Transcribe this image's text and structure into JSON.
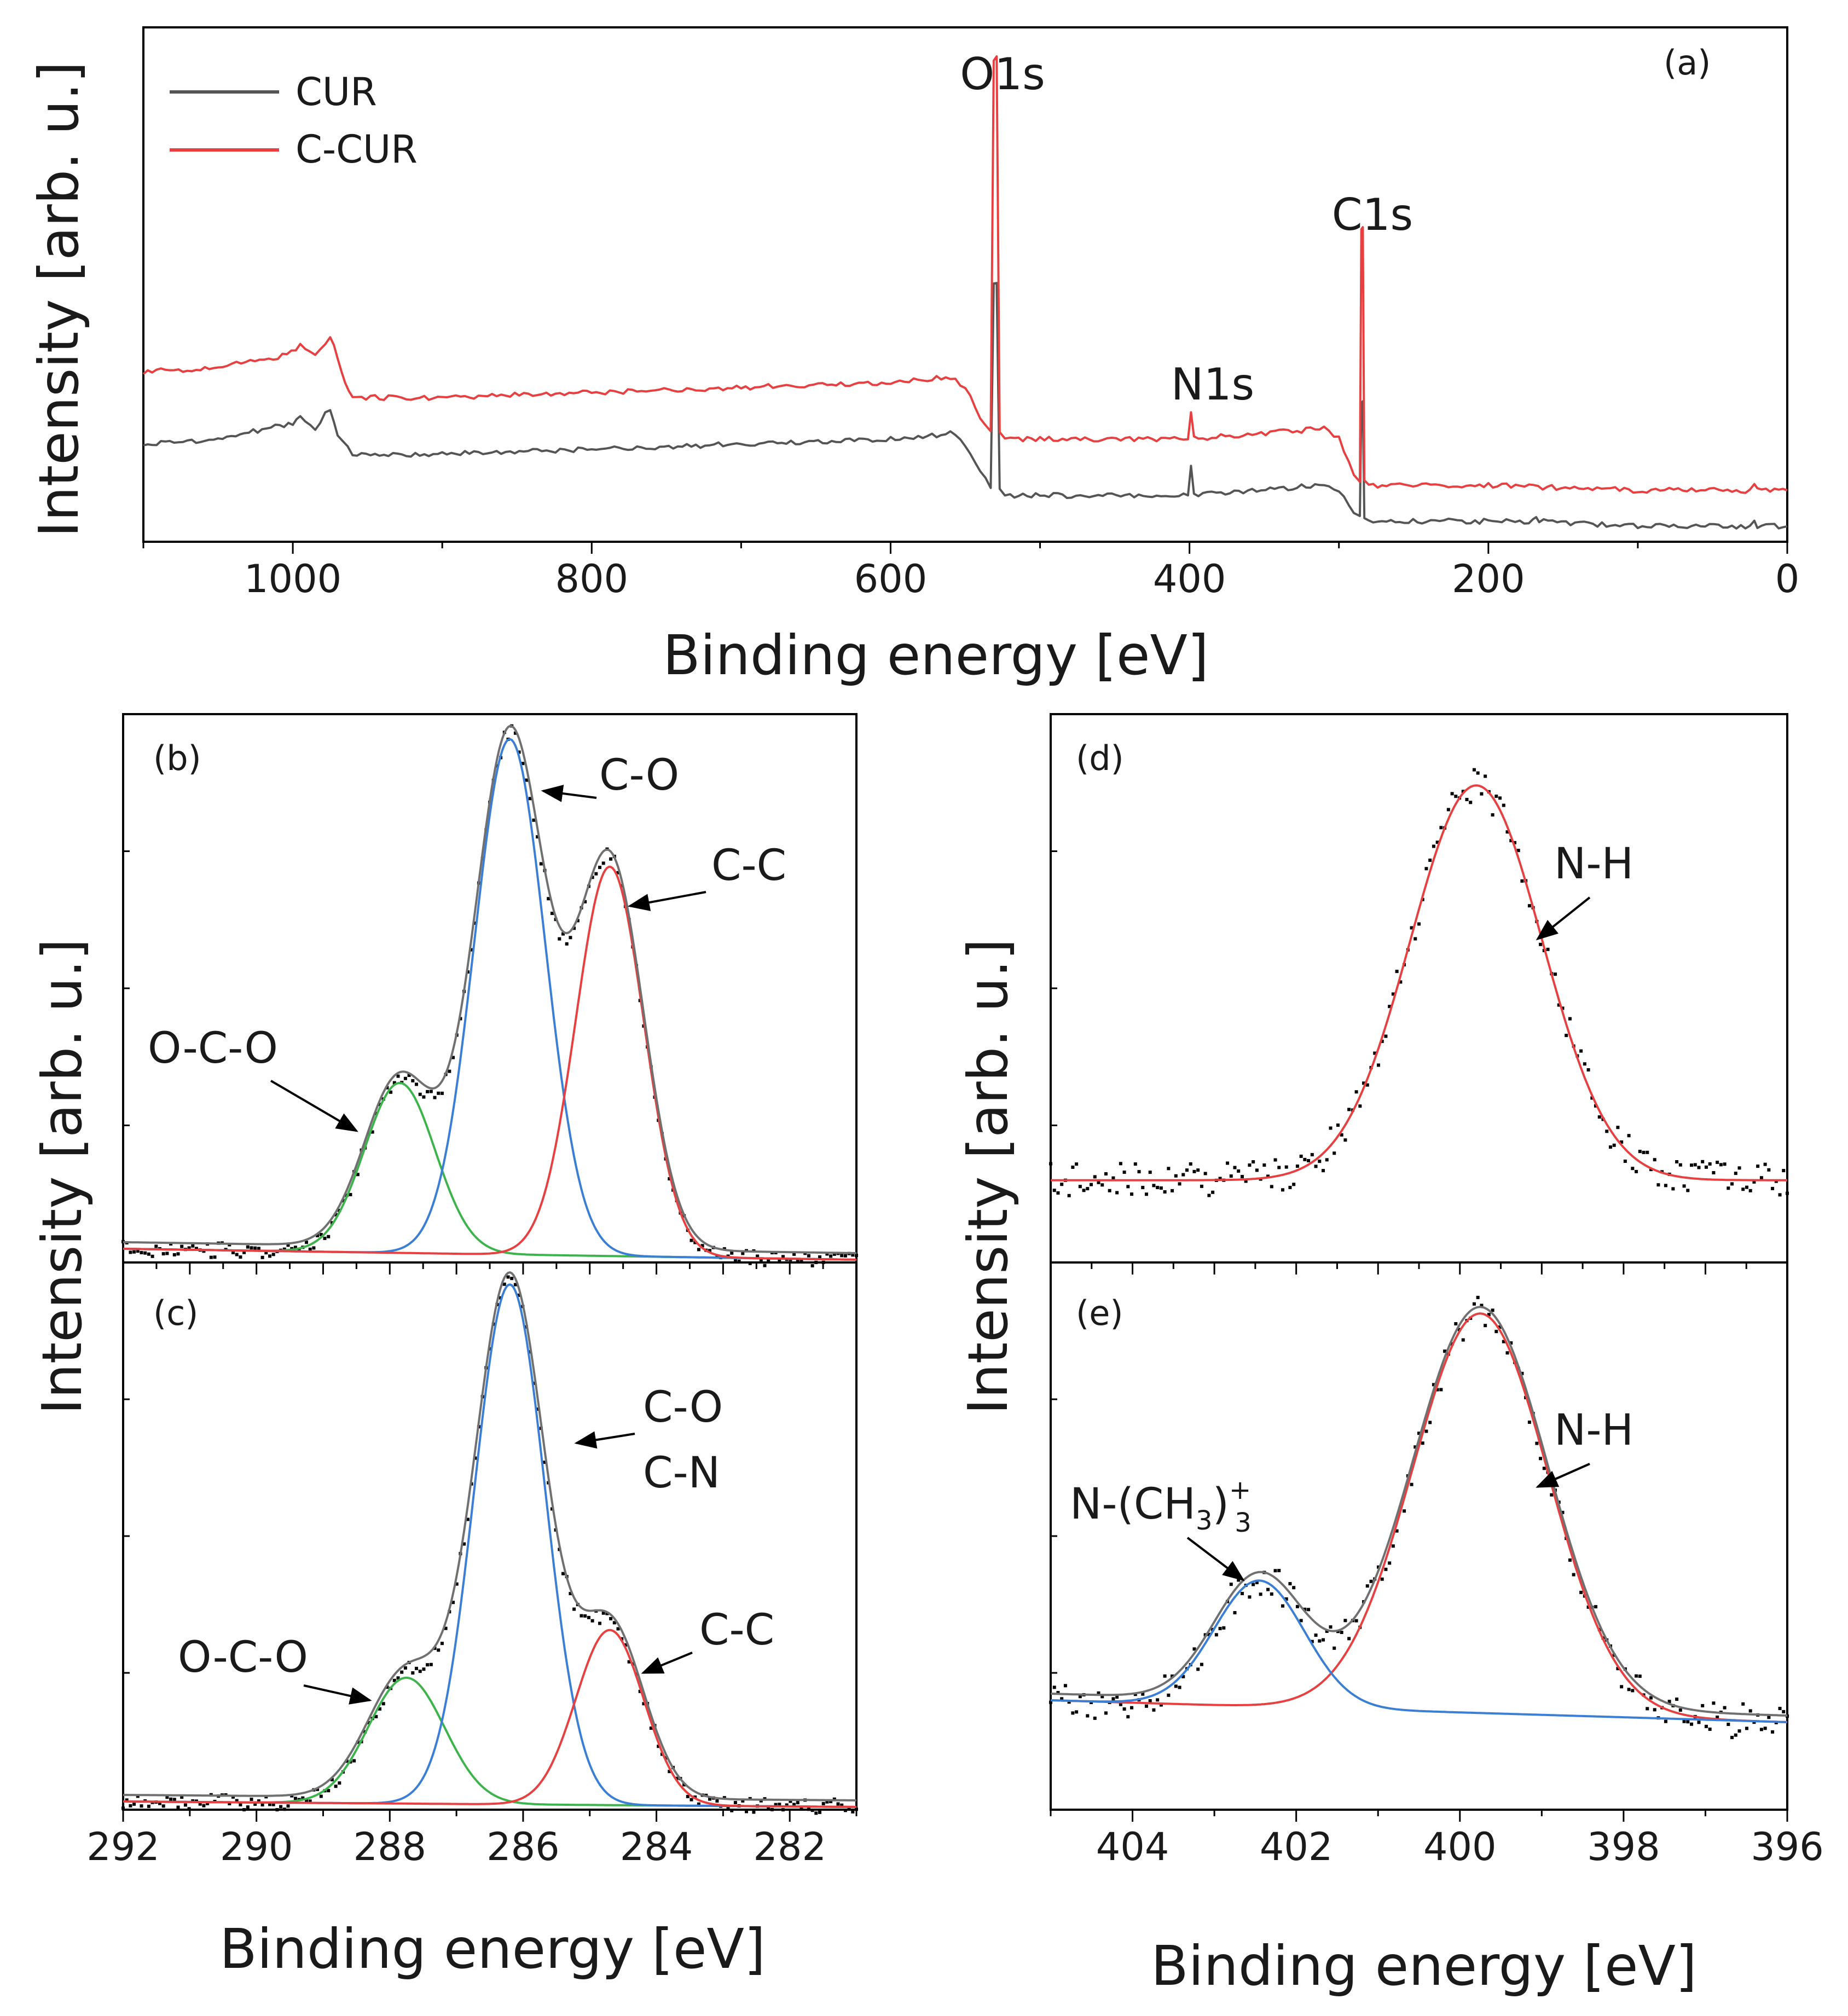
{
  "figure": {
    "ylabel_top": "Intensity [arb. u.]",
    "ylabel_left": "Intensity [arb. u.]",
    "ylabel_right": "Intensity [arb. u.]"
  },
  "chart_data": [
    {
      "id": "a",
      "type": "line",
      "panel_label": "(a)",
      "title": "",
      "xlabel": "Binding energy [eV]",
      "ylabel": "Intensity [arb. u.]",
      "xlim": [
        1100,
        0
      ],
      "ylim": [
        0,
        100
      ],
      "x_ticks": [
        1000,
        800,
        600,
        400,
        200,
        0
      ],
      "x_tick_labels": [
        "1000",
        "800",
        "600",
        "400",
        "200",
        "0"
      ],
      "legend": {
        "position": "top-left",
        "entries": [
          {
            "label": "CUR",
            "color": "#555555"
          },
          {
            "label": "C-CUR",
            "color": "#e84040"
          }
        ]
      },
      "annotations": [
        {
          "text": "O1s",
          "x": 531
        },
        {
          "text": "N1s",
          "x": 399
        },
        {
          "text": "C1s",
          "x": 285
        }
      ],
      "series": [
        {
          "name": "CUR",
          "color": "#555555",
          "points": [
            [
              1100,
              19
            ],
            [
              1050,
              20
            ],
            [
              1000,
              23
            ],
            [
              995,
              24
            ],
            [
              985,
              22
            ],
            [
              975,
              26
            ],
            [
              970,
              21
            ],
            [
              960,
              17
            ],
            [
              900,
              17
            ],
            [
              800,
              18
            ],
            [
              700,
              19
            ],
            [
              600,
              20
            ],
            [
              560,
              21
            ],
            [
              550,
              19
            ],
            [
              540,
              14
            ],
            [
              533,
              10
            ],
            [
              531,
              50
            ],
            [
              529,
              50
            ],
            [
              527,
              10
            ],
            [
              520,
              9
            ],
            [
              500,
              9
            ],
            [
              410,
              9
            ],
            [
              401,
              9
            ],
            [
              399,
              15
            ],
            [
              397,
              9
            ],
            [
              310,
              11
            ],
            [
              300,
              10
            ],
            [
              290,
              6
            ],
            [
              286,
              5
            ],
            [
              285,
              27
            ],
            [
              284,
              27
            ],
            [
              283,
              5
            ],
            [
              280,
              4
            ],
            [
              200,
              4
            ],
            [
              170,
              4
            ],
            [
              168,
              5
            ],
            [
              166,
              4
            ],
            [
              100,
              3
            ],
            [
              25,
              3
            ],
            [
              22,
              4
            ],
            [
              20,
              3
            ],
            [
              0,
              3
            ]
          ]
        },
        {
          "name": "C-CUR",
          "color": "#e84040",
          "points": [
            [
              1100,
              33
            ],
            [
              1050,
              34
            ],
            [
              1010,
              36
            ],
            [
              995,
              38
            ],
            [
              985,
              36
            ],
            [
              975,
              40
            ],
            [
              970,
              36
            ],
            [
              965,
              31
            ],
            [
              960,
              28
            ],
            [
              900,
              28
            ],
            [
              800,
              29
            ],
            [
              700,
              30
            ],
            [
              600,
              31
            ],
            [
              560,
              32
            ],
            [
              550,
              30
            ],
            [
              540,
              24
            ],
            [
              533,
              21
            ],
            [
              531,
              94
            ],
            [
              529,
              94
            ],
            [
              527,
              21
            ],
            [
              520,
              20
            ],
            [
              500,
              20
            ],
            [
              410,
              20
            ],
            [
              401,
              20
            ],
            [
              399,
              25
            ],
            [
              397,
              20
            ],
            [
              310,
              22
            ],
            [
              300,
              20
            ],
            [
              290,
              13
            ],
            [
              286,
              12
            ],
            [
              285,
              61
            ],
            [
              284,
              61
            ],
            [
              283,
              12
            ],
            [
              280,
              11
            ],
            [
              200,
              11
            ],
            [
              100,
              10
            ],
            [
              25,
              10
            ],
            [
              22,
              11
            ],
            [
              20,
              10
            ],
            [
              0,
              10
            ]
          ]
        }
      ]
    },
    {
      "id": "b",
      "type": "line",
      "panel_label": "(b)",
      "xlim": [
        292,
        281
      ],
      "ylim": [
        0,
        100
      ],
      "annotations": [
        {
          "text": "C-O",
          "points_to": [
            285.7,
            86.0
          ]
        },
        {
          "text": "C-C",
          "points_to": [
            284.4,
            65.0
          ]
        },
        {
          "text": "O-C-O",
          "points_to": [
            288.5,
            24.0
          ]
        }
      ],
      "components": [
        {
          "name": "O-C-O",
          "center": 287.85,
          "height": 31,
          "fwhm": 1.25,
          "color": "#3cb44b"
        },
        {
          "name": "C-O",
          "center": 286.2,
          "height": 94,
          "fwhm": 1.25,
          "color": "#3a7fd5"
        },
        {
          "name": "C-C",
          "center": 284.7,
          "height": 71,
          "fwhm": 1.2,
          "color": "#e84040"
        }
      ],
      "background": {
        "left": 2.5,
        "right": 0.5
      },
      "envelope_color": "#707070"
    },
    {
      "id": "c",
      "type": "line",
      "panel_label": "(c)",
      "xlabel": "Binding energy [eV]",
      "xlim": [
        292,
        281
      ],
      "ylim": [
        0,
        100
      ],
      "x_ticks": [
        292,
        290,
        288,
        286,
        284,
        282
      ],
      "x_tick_labels": [
        "292",
        "290",
        "288",
        "286",
        "284",
        "282"
      ],
      "annotations": [
        {
          "text": "C-O",
          "points_to": [
            285.2,
            67.0
          ]
        },
        {
          "text": "C-N",
          "points_to": null
        },
        {
          "text": "C-C",
          "points_to": [
            284.2,
            25.0
          ]
        },
        {
          "text": "O-C-O",
          "points_to": [
            288.3,
            20.0
          ]
        }
      ],
      "components": [
        {
          "name": "O-C-O",
          "center": 287.75,
          "height": 23,
          "fwhm": 1.35,
          "color": "#3cb44b"
        },
        {
          "name": "C-O/C-N",
          "center": 286.2,
          "height": 95,
          "fwhm": 1.25,
          "color": "#3a7fd5"
        },
        {
          "name": "C-C",
          "center": 284.7,
          "height": 32,
          "fwhm": 1.2,
          "color": "#e84040"
        }
      ],
      "background": {
        "left": 1.5,
        "right": 0.5
      },
      "envelope_color": "#707070"
    },
    {
      "id": "d",
      "type": "line",
      "panel_label": "(d)",
      "xlim": [
        405,
        396
      ],
      "ylim": [
        0,
        100
      ],
      "annotations": [
        {
          "text": "N-H",
          "points_to": [
            399.05,
            59.0
          ]
        }
      ],
      "components": [
        {
          "name": "N-H",
          "center": 399.8,
          "height": 72,
          "fwhm": 1.9,
          "color": "#e84040"
        }
      ],
      "background": {
        "left": 15,
        "right": 15
      },
      "envelope_color": "#e84040"
    },
    {
      "id": "e",
      "type": "line",
      "panel_label": "(e)",
      "xlabel": "Binding energy [eV]",
      "xlim": [
        405,
        396
      ],
      "ylim": [
        0,
        100
      ],
      "x_ticks": [
        404,
        402,
        400,
        398,
        396
      ],
      "x_tick_labels": [
        "404",
        "402",
        "400",
        "398",
        "396"
      ],
      "annotations": [
        {
          "text": "N-H",
          "points_to": [
            399.05,
            59.0
          ]
        },
        {
          "text": "N-(CH",
          "sub": "3",
          "suffix": ")",
          "supsub": "+",
          "subscript_outer": "3",
          "points_to": [
            402.65,
            42.0
          ]
        }
      ],
      "components": [
        {
          "name": "N-H",
          "center": 399.75,
          "height": 73,
          "fwhm": 1.95,
          "color": "#e84040"
        },
        {
          "name": "N-(CH3)3+",
          "center": 402.45,
          "height": 23,
          "fwhm": 1.3,
          "color": "#3a7fd5"
        }
      ],
      "background": {
        "left": 20,
        "right": 16
      },
      "envelope_color": "#707070"
    }
  ]
}
